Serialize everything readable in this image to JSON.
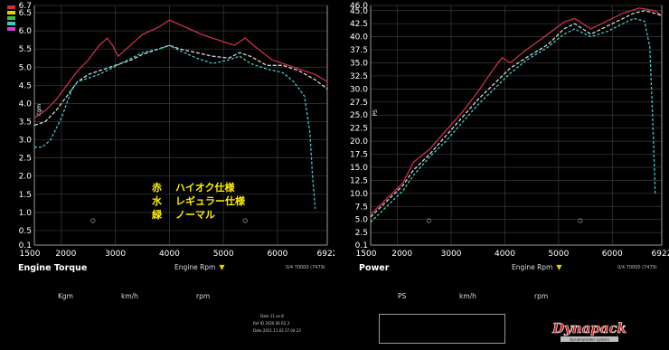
{
  "chart_data": [
    {
      "type": "line",
      "title": "Engine Torque",
      "xlabel": "Engine Rpm",
      "ylabel": "Kgm",
      "xlim": [
        1500,
        6922
      ],
      "ylim": [
        0.1,
        6.7
      ],
      "x_ticks": [
        1500,
        2000,
        3000,
        4000,
        5000,
        6000,
        6922
      ],
      "x_tick_labels": [
        "1500",
        "2000",
        "3000",
        "4000",
        "5000",
        "6000",
        "6922"
      ],
      "y_ticks": [
        0.1,
        0.5,
        1.0,
        1.5,
        2.0,
        2.5,
        3.0,
        3.5,
        4.0,
        4.5,
        5.0,
        5.5,
        6.0,
        6.5,
        6.7
      ],
      "y_tick_labels": [
        "0.1",
        "0.5",
        "1.0",
        "1.5",
        "2.0",
        "2.5",
        "3.0",
        "3.5",
        "4.0",
        "4.5",
        "5.0",
        "5.5",
        "6.0",
        "6.5",
        "6.7"
      ],
      "grid": true,
      "series": [
        {
          "color": "#c8304a",
          "dash": "",
          "x": [
            1500,
            1700,
            1900,
            2100,
            2300,
            2500,
            2700,
            2850,
            2950,
            3050,
            3200,
            3500,
            3800,
            4000,
            4300,
            4600,
            4900,
            5200,
            5400,
            5600,
            5900,
            6100,
            6400,
            6700,
            6922
          ],
          "y": [
            3.6,
            3.8,
            4.1,
            4.5,
            4.9,
            5.2,
            5.6,
            5.8,
            5.6,
            5.3,
            5.5,
            5.9,
            6.1,
            6.3,
            6.1,
            5.9,
            5.75,
            5.6,
            5.8,
            5.55,
            5.2,
            5.1,
            4.95,
            4.8,
            4.6
          ]
        },
        {
          "color": "#d6d6d6",
          "dash": "4,2",
          "x": [
            1500,
            1700,
            1900,
            2100,
            2300,
            2500,
            2700,
            2900,
            3100,
            3300,
            3500,
            3800,
            4000,
            4200,
            4500,
            4800,
            5100,
            5300,
            5500,
            5800,
            6100,
            6400,
            6700,
            6922
          ],
          "y": [
            3.4,
            3.5,
            3.8,
            4.2,
            4.6,
            4.8,
            4.9,
            5.0,
            5.1,
            5.2,
            5.35,
            5.5,
            5.6,
            5.5,
            5.4,
            5.3,
            5.25,
            5.4,
            5.3,
            5.05,
            5.05,
            4.9,
            4.65,
            4.4
          ]
        },
        {
          "color": "#40c8c8",
          "dash": "3,2",
          "x": [
            1500,
            1650,
            1800,
            2000,
            2200,
            2300,
            2500,
            2700,
            2900,
            3100,
            3300,
            3500,
            3800,
            4000,
            4200,
            4500,
            4800,
            5100,
            5300,
            5500,
            5800,
            6100,
            6300,
            6500,
            6600,
            6650,
            6700
          ],
          "y": [
            2.8,
            2.8,
            3.0,
            3.6,
            4.4,
            4.6,
            4.7,
            4.8,
            4.95,
            5.1,
            5.25,
            5.4,
            5.5,
            5.6,
            5.45,
            5.25,
            5.1,
            5.2,
            5.3,
            5.1,
            4.95,
            4.85,
            4.6,
            4.2,
            3.2,
            2.0,
            1.1
          ]
        }
      ]
    },
    {
      "type": "line",
      "title": "Power",
      "xlabel": "Engine Rpm",
      "ylabel": "PS",
      "xlim": [
        1500,
        6922
      ],
      "ylim": [
        0.1,
        46.0
      ],
      "x_ticks": [
        1500,
        2000,
        3000,
        4000,
        5000,
        6000,
        6922
      ],
      "x_tick_labels": [
        "1500",
        "2000",
        "3000",
        "4000",
        "5000",
        "6000",
        "6922"
      ],
      "y_ticks": [
        0.1,
        2.5,
        5.0,
        7.5,
        10.0,
        12.5,
        15.0,
        17.5,
        20.0,
        22.5,
        25.0,
        27.5,
        30.0,
        32.5,
        35.0,
        37.5,
        40.0,
        42.5,
        45.0,
        46.0
      ],
      "y_tick_labels": [
        "0.1",
        "2.5",
        "5.0",
        "7.5",
        "10.0",
        "12.5",
        "15.0",
        "17.5",
        "20.0",
        "22.5",
        "25.0",
        "27.5",
        "30.0",
        "32.5",
        "35.0",
        "37.5",
        "40.0",
        "42.5",
        "45.0",
        "46.0"
      ],
      "grid": true,
      "series": [
        {
          "color": "#c8304a",
          "dash": "",
          "x": [
            1500,
            1800,
            2100,
            2300,
            2600,
            2900,
            3200,
            3500,
            3800,
            3950,
            4100,
            4400,
            4800,
            5100,
            5300,
            5600,
            5900,
            6200,
            6500,
            6800,
            6922
          ],
          "y": [
            6.0,
            9.0,
            12.0,
            16.0,
            18.5,
            22.0,
            25.5,
            29.5,
            34.0,
            36.0,
            35.0,
            37.5,
            40.5,
            42.8,
            43.5,
            41.5,
            43.0,
            44.5,
            45.5,
            45.0,
            44.0
          ]
        },
        {
          "color": "#d6d6d6",
          "dash": "4,2",
          "x": [
            1500,
            1800,
            2100,
            2300,
            2600,
            2900,
            3200,
            3500,
            3800,
            4100,
            4400,
            4800,
            5100,
            5300,
            5600,
            5900,
            6200,
            6400,
            6600,
            6800,
            6922
          ],
          "y": [
            5.5,
            8.5,
            11.5,
            14.5,
            17.5,
            21.0,
            24.5,
            28.0,
            31.0,
            34.0,
            36.0,
            38.5,
            41.5,
            42.5,
            40.5,
            42.0,
            43.5,
            44.5,
            45.0,
            44.5,
            44.0
          ]
        },
        {
          "color": "#40c8c8",
          "dash": "3,2",
          "x": [
            1500,
            1800,
            2100,
            2300,
            2600,
            2900,
            3200,
            3500,
            3800,
            4100,
            4400,
            4800,
            5100,
            5300,
            5600,
            5900,
            6200,
            6400,
            6600,
            6700,
            6750,
            6800
          ],
          "y": [
            4.5,
            7.5,
            10.5,
            13.5,
            17.0,
            20.0,
            23.5,
            27.0,
            30.0,
            33.0,
            35.5,
            38.0,
            40.5,
            41.5,
            40.0,
            41.0,
            42.5,
            43.5,
            43.0,
            38.0,
            25.0,
            10.0
          ]
        }
      ]
    }
  ],
  "legend_lines": [
    {
      "key": "赤",
      "text": "ハイオク仕様"
    },
    {
      "key": "水",
      "text": "レギュラー仕様"
    },
    {
      "key": "緑",
      "text": "ノーマル"
    }
  ],
  "torque_panel": {
    "title": "Engine Torque",
    "rpm_select": "Engine Rpm",
    "status": "0/4 70000 (7479)"
  },
  "power_panel": {
    "title": "Power",
    "rpm_select": "Engine Rpm",
    "status": "0/4 70000 (7479)"
  },
  "readouts": {
    "kgm": "Kgm",
    "kmh_left": "km/h",
    "rpm_left": "rpm",
    "ps": "PS",
    "kmh_right": "km/h",
    "rpm_right": "rpm"
  },
  "info": {
    "line1": "Date  11.xx.8",
    "line2": "Ref ID  2020 06 R2.3",
    "line3": "Date  2021.11.02 17.04.23"
  },
  "logo": {
    "main": "Dynapack",
    "sub": "dynamometer system"
  },
  "colors": {
    "high_octane": "#c8304a",
    "regular": "#40c8c8",
    "normal": "#d6d6d6",
    "legend_text": "#ffee00"
  }
}
